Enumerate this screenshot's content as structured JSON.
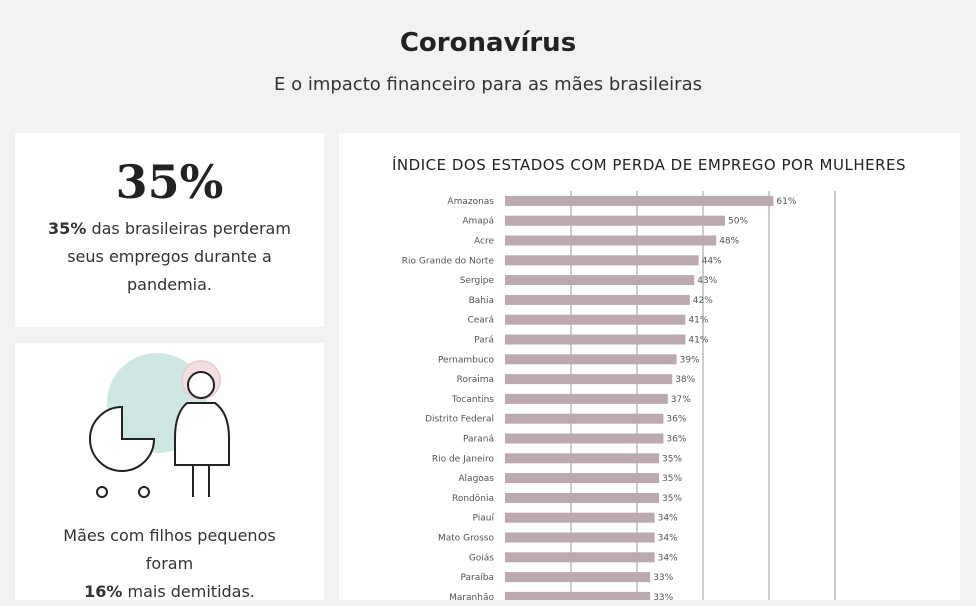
{
  "header": {
    "title": "Coronavírus",
    "subtitle": "E o impacto financeiro para as mães brasileiras"
  },
  "cards": [
    {
      "big": "35%",
      "bold": "35%",
      "text": "das brasileiras perderam seus empregos durante a pandemia."
    },
    {
      "text": "Mães com filhos pequenos foram",
      "bold": "16%",
      "text_after": "mais demitidas."
    }
  ],
  "chart_data": {
    "type": "hbar",
    "title": "ÍNDICE DOS ESTADOS COM PERDA DE EMPREGO POR MULHERES",
    "categories": [
      "Amazonas",
      "Amapá",
      "Acre",
      "Rio Grande do Norte",
      "Sergipe",
      "Bahia",
      "Ceará",
      "Pará",
      "Pernambuco",
      "Roraima",
      "Tocantins",
      "Distrito Federal",
      "Paraná",
      "Rio de Janeiro",
      "Alagoas",
      "Rondônia",
      "Piauí",
      "Mato Grosso",
      "Goiás",
      "Paraíba",
      "Maranhão"
    ],
    "values": [
      61,
      50,
      48,
      44,
      43,
      42,
      41,
      41,
      39,
      38,
      37,
      36,
      36,
      35,
      35,
      35,
      34,
      34,
      34,
      33,
      33
    ],
    "value_labels": [
      "61%",
      "50%",
      "48%",
      "44%",
      "43%",
      "42%",
      "41%",
      "41%",
      "39%",
      "38%",
      "37%",
      "36%",
      "36%",
      "35%",
      "35%",
      "35%",
      "34%",
      "34%",
      "34%",
      "33%",
      "33%"
    ],
    "color": "#bca8b0",
    "xlim": [
      0,
      75
    ],
    "xticks": [
      15,
      30,
      45,
      60,
      75
    ],
    "grid": true
  }
}
